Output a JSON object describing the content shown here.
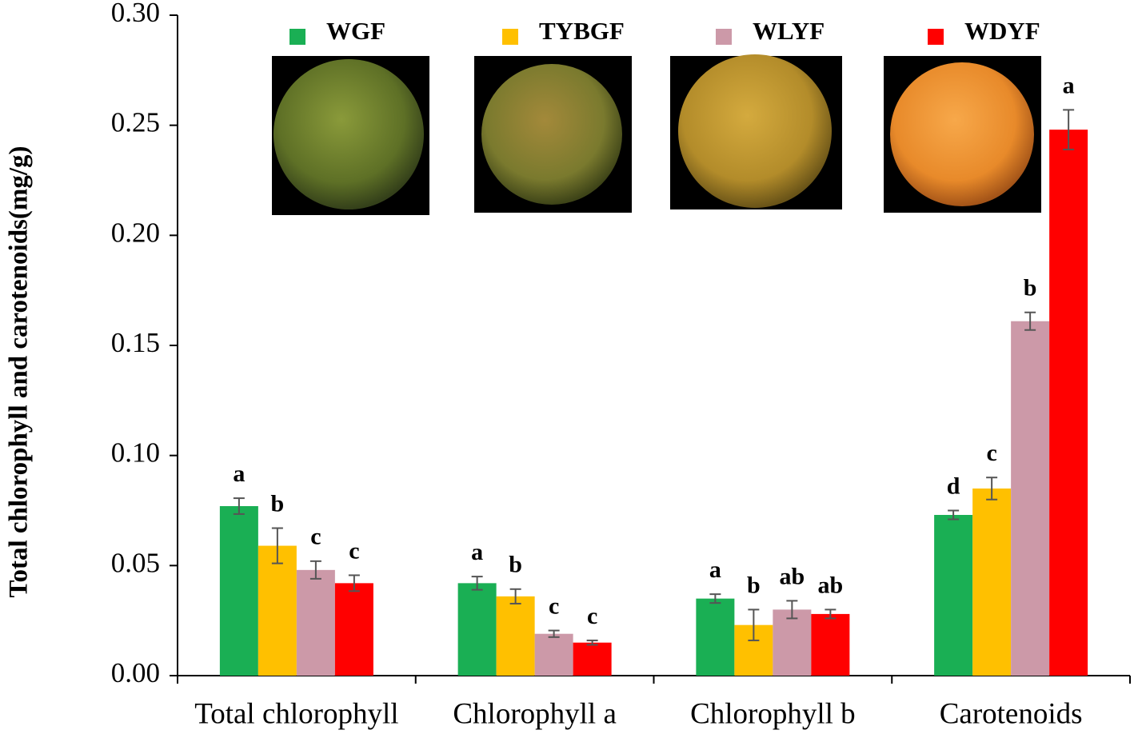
{
  "chart_data": {
    "type": "bar",
    "ylabel": "Total chlorophyll and carotenoids(mg/g)",
    "categories": [
      "Total chlorophyll",
      "Chlorophyll a",
      "Chlorophyll b",
      "Carotenoids"
    ],
    "series": [
      {
        "name": "WGF",
        "color": "#1aaf54",
        "values": [
          0.077,
          0.042,
          0.035,
          0.073
        ],
        "errors": [
          0.0036,
          0.003,
          0.002,
          0.002
        ],
        "annotations": [
          "a",
          "a",
          "a",
          "d"
        ]
      },
      {
        "name": "TYBGF",
        "color": "#ffc000",
        "values": [
          0.059,
          0.036,
          0.023,
          0.085
        ],
        "errors": [
          0.008,
          0.0033,
          0.007,
          0.005
        ],
        "annotations": [
          "b",
          "b",
          "b",
          "c"
        ]
      },
      {
        "name": "WLYF",
        "color": "#cc99a8",
        "values": [
          0.048,
          0.019,
          0.03,
          0.161
        ],
        "errors": [
          0.004,
          0.0015,
          0.004,
          0.004
        ],
        "annotations": [
          "c",
          "c",
          "ab",
          "b"
        ]
      },
      {
        "name": "WDYF",
        "color": "#ff0000",
        "values": [
          0.042,
          0.015,
          0.028,
          0.248
        ],
        "errors": [
          0.0036,
          0.001,
          0.002,
          0.009
        ],
        "annotations": [
          "c",
          "c",
          "ab",
          "a"
        ]
      }
    ],
    "ylim": [
      0,
      0.3
    ],
    "yticks": [
      {
        "value": 0,
        "label": "0.00"
      },
      0.05,
      {
        "value": 0.1,
        "label": "0.10"
      },
      0.15,
      {
        "value": 0.2,
        "label": "0.20"
      },
      0.25,
      {
        "value": 0.3,
        "label": "0.30"
      }
    ],
    "grid": false
  }
}
